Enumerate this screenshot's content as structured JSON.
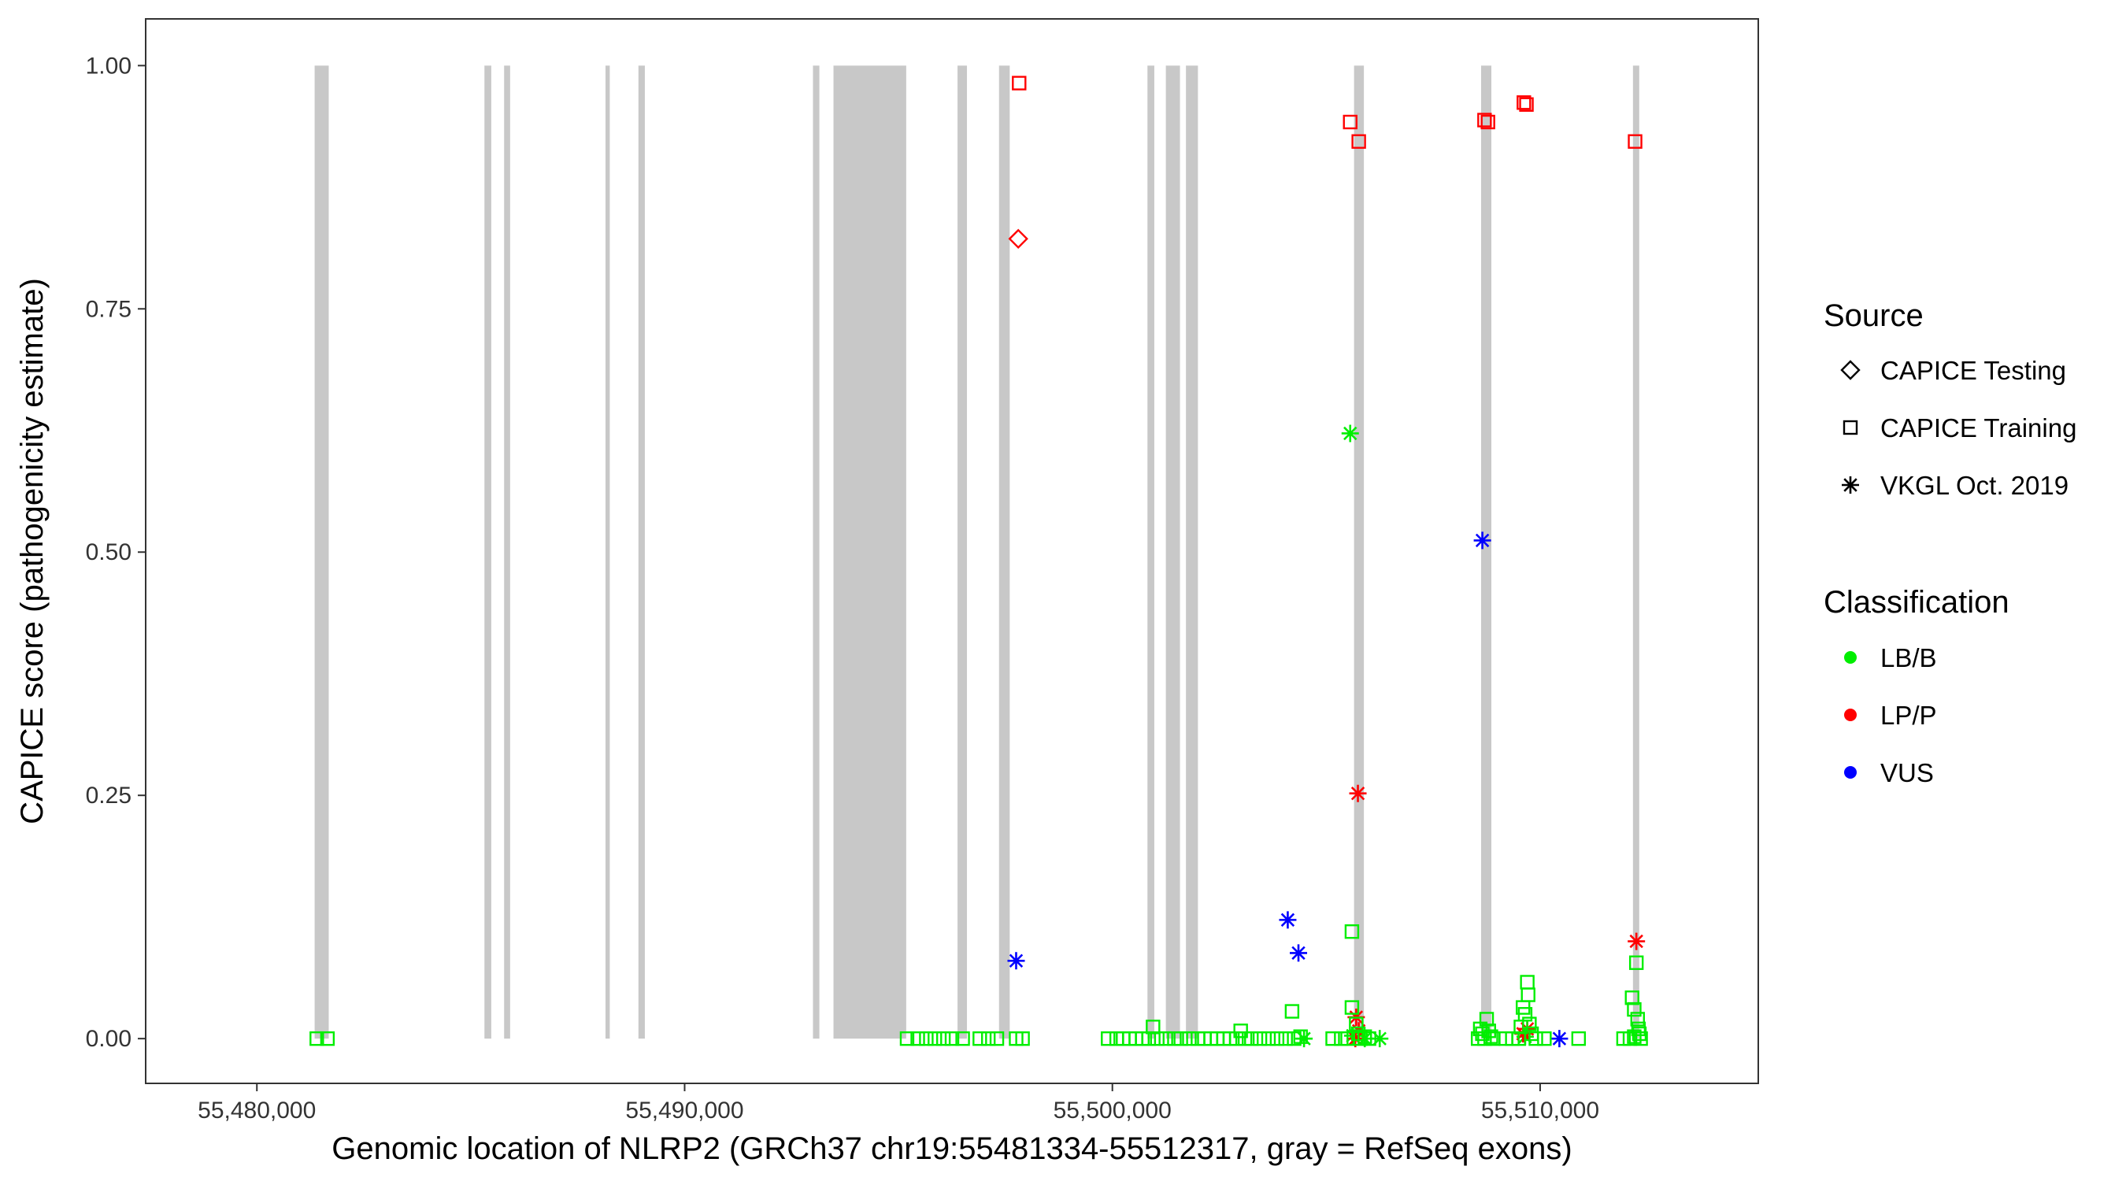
{
  "chart_data": {
    "type": "scatter",
    "xlabel": "Genomic location of NLRP2 (GRCh37 chr19:55481334-55512317, gray = RefSeq exons)",
    "ylabel": "CAPICE score (pathogenicity estimate)",
    "xlim": [
      55477400,
      55515100
    ],
    "ylim": [
      -0.046,
      1.048
    ],
    "x_ticks": [
      55480000,
      55490000,
      55500000,
      55510000
    ],
    "x_tick_labels": [
      "55,480,000",
      "55,490,000",
      "55,500,000",
      "55,510,000"
    ],
    "y_ticks": [
      0,
      0.25,
      0.5,
      0.75,
      1.0
    ],
    "y_tick_labels": [
      "0.00",
      "0.25",
      "0.50",
      "0.75",
      "1.00"
    ],
    "grid": false,
    "legend_placement": "right",
    "exons": [
      [
        55481350,
        55481680
      ],
      [
        55485320,
        55485480
      ],
      [
        55485780,
        55485920
      ],
      [
        55488150,
        55488250
      ],
      [
        55488920,
        55489070
      ],
      [
        55493000,
        55493150
      ],
      [
        55493480,
        55495180
      ],
      [
        55496380,
        55496600
      ],
      [
        55497350,
        55497600
      ],
      [
        55500820,
        55500980
      ],
      [
        55501250,
        55501580
      ],
      [
        55501720,
        55502000
      ],
      [
        55505650,
        55505880
      ],
      [
        55508620,
        55508860
      ],
      [
        55512170,
        55512317
      ]
    ],
    "exon_color": "#c8c8c8",
    "legend": {
      "source": {
        "title": "Source",
        "entries": [
          {
            "label": "CAPICE Testing",
            "shape": "diamond"
          },
          {
            "label": "CAPICE Training",
            "shape": "square"
          },
          {
            "label": "VKGL Oct. 2019",
            "shape": "asterisk"
          }
        ]
      },
      "classification": {
        "title": "Classification",
        "entries": [
          {
            "label": "LB/B",
            "color": "#00ee00"
          },
          {
            "label": "LP/P",
            "color": "#ff0000"
          },
          {
            "label": "VUS",
            "color": "#0000ff"
          }
        ]
      }
    },
    "series": [
      {
        "source": "CAPICE Training",
        "classification": "LP/P",
        "points": [
          [
            55497820,
            0.982
          ],
          [
            55505560,
            0.942
          ],
          [
            55505760,
            0.922
          ],
          [
            55508700,
            0.944
          ],
          [
            55508780,
            0.942
          ],
          [
            55509620,
            0.962
          ],
          [
            55509680,
            0.96
          ],
          [
            55512220,
            0.922
          ]
        ]
      },
      {
        "source": "CAPICE Testing",
        "classification": "LP/P",
        "points": [
          [
            55497800,
            0.822
          ]
        ]
      },
      {
        "source": "VKGL Oct. 2019",
        "classification": "LB/B",
        "points": [
          [
            55505560,
            0.622
          ],
          [
            55504480,
            0.0
          ],
          [
            55505620,
            0.003
          ],
          [
            55505900,
            0.0
          ],
          [
            55506250,
            0.0
          ],
          [
            55509650,
            0.002
          ]
        ]
      },
      {
        "source": "VKGL Oct. 2019",
        "classification": "VUS",
        "points": [
          [
            55497750,
            0.08
          ],
          [
            55508650,
            0.512
          ],
          [
            55504100,
            0.122
          ],
          [
            55504350,
            0.088
          ],
          [
            55510450,
            0.0
          ]
        ]
      },
      {
        "source": "VKGL Oct. 2019",
        "classification": "LP/P",
        "points": [
          [
            55505740,
            0.252
          ],
          [
            55512250,
            0.1
          ],
          [
            55505700,
            0.022
          ],
          [
            55505760,
            0.008
          ],
          [
            55505680,
            0.0
          ],
          [
            55509600,
            0.005
          ],
          [
            55509700,
            0.01
          ]
        ]
      },
      {
        "source": "CAPICE Training",
        "classification": "LB/B",
        "points": [
          [
            55481400,
            0.0
          ],
          [
            55481650,
            0.0
          ],
          [
            55495200,
            0.0
          ],
          [
            55495450,
            0.0
          ],
          [
            55495650,
            0.0
          ],
          [
            55495850,
            0.0
          ],
          [
            55496050,
            0.0
          ],
          [
            55496250,
            0.0
          ],
          [
            55496500,
            0.0
          ],
          [
            55496900,
            0.0
          ],
          [
            55497100,
            0.0
          ],
          [
            55497300,
            0.0
          ],
          [
            55497750,
            0.0
          ],
          [
            55497900,
            0.0
          ],
          [
            55499900,
            0.0
          ],
          [
            55500100,
            0.0
          ],
          [
            55500250,
            0.0
          ],
          [
            55500400,
            0.0
          ],
          [
            55500550,
            0.0
          ],
          [
            55500700,
            0.0
          ],
          [
            55500850,
            0.0
          ],
          [
            55500950,
            0.012
          ],
          [
            55501050,
            0.0
          ],
          [
            55501250,
            0.0
          ],
          [
            55501450,
            0.0
          ],
          [
            55501600,
            0.0
          ],
          [
            55501800,
            0.0
          ],
          [
            55502000,
            0.0
          ],
          [
            55502150,
            0.0
          ],
          [
            55502300,
            0.0
          ],
          [
            55502450,
            0.0
          ],
          [
            55502600,
            0.0
          ],
          [
            55502750,
            0.0
          ],
          [
            55502900,
            0.0
          ],
          [
            55503000,
            0.008
          ],
          [
            55503100,
            0.0
          ],
          [
            55503250,
            0.0
          ],
          [
            55503450,
            0.0
          ],
          [
            55503650,
            0.0
          ],
          [
            55503850,
            0.0
          ],
          [
            55504050,
            0.0
          ],
          [
            55504250,
            0.0
          ],
          [
            55504200,
            0.028
          ],
          [
            55504400,
            0.002
          ],
          [
            55505150,
            0.0
          ],
          [
            55505350,
            0.0
          ],
          [
            55505500,
            0.0
          ],
          [
            55505600,
            0.11
          ],
          [
            55505600,
            0.032
          ],
          [
            55505700,
            0.015
          ],
          [
            55505750,
            0.005
          ],
          [
            55505800,
            0.0
          ],
          [
            55505900,
            0.002
          ],
          [
            55506000,
            0.0
          ],
          [
            55508550,
            0.0
          ],
          [
            55508600,
            0.01
          ],
          [
            55508650,
            0.005
          ],
          [
            55508700,
            0.0
          ],
          [
            55508750,
            0.02
          ],
          [
            55508800,
            0.008
          ],
          [
            55508850,
            0.002
          ],
          [
            55508900,
            0.0
          ],
          [
            55509200,
            0.0
          ],
          [
            55509350,
            0.0
          ],
          [
            55509500,
            0.0
          ],
          [
            55509550,
            0.012
          ],
          [
            55509600,
            0.032
          ],
          [
            55509650,
            0.025
          ],
          [
            55509700,
            0.058
          ],
          [
            55509720,
            0.045
          ],
          [
            55509750,
            0.015
          ],
          [
            55509800,
            0.005
          ],
          [
            55509900,
            0.0
          ],
          [
            55510100,
            0.0
          ],
          [
            55510900,
            0.0
          ],
          [
            55511950,
            0.0
          ],
          [
            55512100,
            0.0
          ],
          [
            55512150,
            0.042
          ],
          [
            55512200,
            0.03
          ],
          [
            55512250,
            0.078
          ],
          [
            55512280,
            0.02
          ],
          [
            55512300,
            0.01
          ],
          [
            55512320,
            0.005
          ],
          [
            55512350,
            0.0
          ],
          [
            55512200,
            0.002
          ]
        ]
      }
    ]
  }
}
